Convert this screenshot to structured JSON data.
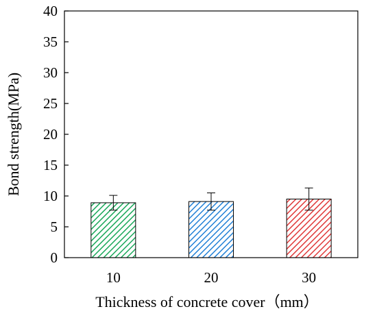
{
  "chart_data": {
    "type": "bar",
    "title": "",
    "xlabel": "Thickness of concrete cover（mm）",
    "ylabel": "Bond strength(MPa)",
    "categories": [
      "10",
      "20",
      "30"
    ],
    "values": [
      8.9,
      9.1,
      9.5
    ],
    "error": [
      1.2,
      1.4,
      1.8
    ],
    "ylim": [
      0,
      40
    ],
    "yticks": [
      "0",
      "5",
      "10",
      "15",
      "20",
      "25",
      "30",
      "35",
      "40"
    ],
    "grid": false,
    "legend": "none",
    "bar_colors": [
      "#1aa85a",
      "#1f7fd6",
      "#e03a3a"
    ],
    "hatch": "diagonal"
  }
}
